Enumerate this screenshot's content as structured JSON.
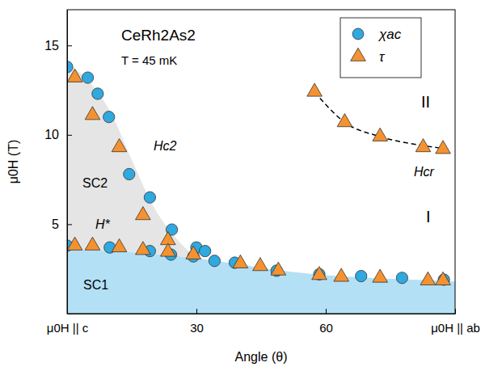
{
  "chart_data": {
    "type": "scatter",
    "title": "CeRh2As2",
    "subtitle": "T = 45 mK",
    "x_label": "Angle (θ)",
    "y_label": "μ0H (T)",
    "xlim": [
      0,
      90
    ],
    "ylim": [
      0,
      17
    ],
    "xticks": [
      {
        "value": 0,
        "label": "μ0H || c"
      },
      30,
      60,
      {
        "value": 90,
        "label": "μ0H || ab"
      }
    ],
    "yticks": [
      5,
      10,
      15
    ],
    "grid": false,
    "legend": "top-right",
    "series": [
      {
        "name": "χac",
        "color": "#2fa9df",
        "marker": "circle",
        "x": [
          0,
          4.8,
          7.1,
          9.7,
          14.4,
          19.2,
          24.3,
          0,
          9.9,
          19.2,
          24.1,
          29.3,
          30.0,
          32.0,
          34.2,
          38.9,
          48.6,
          58.5,
          68.2,
          77.7,
          87.4
        ],
        "values": [
          13.8,
          13.2,
          12.3,
          11.0,
          7.8,
          6.5,
          4.7,
          3.8,
          3.7,
          3.5,
          3.3,
          3.2,
          3.7,
          3.5,
          2.95,
          2.85,
          2.4,
          2.2,
          2.1,
          2.0,
          1.9
        ]
      },
      {
        "name": "τ",
        "color": "#f5922f",
        "marker": "triangle",
        "x": [
          1.8,
          5.9,
          12.1,
          17.6,
          23.4,
          1.8,
          5.9,
          12.1,
          17.6,
          23.4,
          29.3,
          40.2,
          44.8,
          49.0,
          58.5,
          63.6,
          72.6,
          83.7,
          87.2,
          57.4,
          64.4,
          72.6,
          82.6,
          87.2
        ],
        "values": [
          13.2,
          11.1,
          9.3,
          5.5,
          4.1,
          3.8,
          3.8,
          3.7,
          3.55,
          3.45,
          3.3,
          2.8,
          2.65,
          2.4,
          2.15,
          2.05,
          2.0,
          1.85,
          1.85,
          12.4,
          10.7,
          9.9,
          9.3,
          9.2
        ]
      }
    ],
    "regions": [
      {
        "name": "SC1",
        "color": "#b3e0f5",
        "x": [
          0,
          10,
          20,
          30,
          40,
          50,
          60,
          70,
          80,
          90
        ],
        "upper": [
          3.6,
          3.5,
          3.35,
          3.1,
          2.75,
          2.4,
          2.15,
          2.0,
          1.9,
          1.8
        ]
      },
      {
        "name": "SC2",
        "color": "#e5e5e5",
        "x": [
          0,
          5,
          10,
          15,
          20,
          25,
          30
        ],
        "upper": [
          14.0,
          13.0,
          11.3,
          8.6,
          6.0,
          4.3,
          3.1
        ],
        "lower": [
          3.6,
          3.55,
          3.5,
          3.43,
          3.35,
          3.23,
          3.1
        ]
      }
    ],
    "lines": [
      {
        "name": "Hcr",
        "color": "#000000",
        "line_style": "dashed",
        "x": [
          57.4,
          64.4,
          72.6,
          82.6,
          88.5
        ],
        "values": [
          12.4,
          10.7,
          9.9,
          9.4,
          9.2
        ]
      }
    ],
    "annotations": [
      "Hc2",
      "H*",
      "II",
      "I"
    ]
  }
}
